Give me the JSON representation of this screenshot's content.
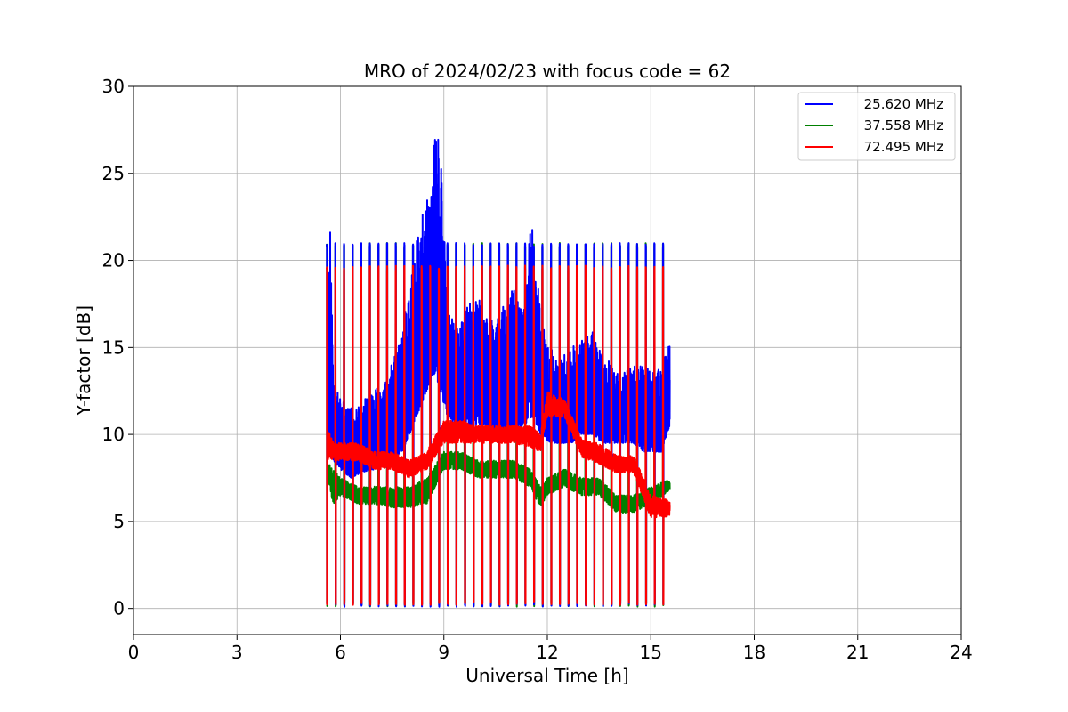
{
  "chart_data": {
    "type": "line",
    "title": "MRO of 2024/02/23 with focus code = 62",
    "xlabel": "Universal Time [h]",
    "ylabel": "Y-factor [dB]",
    "xlim": [
      0,
      24
    ],
    "ylim": [
      -1.5,
      30
    ],
    "xticks": [
      0,
      3,
      6,
      9,
      12,
      15,
      18,
      21,
      24
    ],
    "yticks": [
      0,
      5,
      10,
      15,
      20,
      25,
      30
    ],
    "grid": true,
    "legend_position": "top-right",
    "cycle_period_hours": 0.25,
    "series": [
      {
        "name": "25.620 MHz",
        "color": "#0000ff",
        "calibration_high": 21.0,
        "calibration_low": 0.1,
        "x": [
          5.6,
          5.7,
          5.8,
          6.0,
          6.3,
          6.6,
          7.0,
          7.4,
          7.8,
          8.0,
          8.2,
          8.4,
          8.6,
          8.75,
          8.9,
          9.1,
          9.4,
          9.7,
          10.0,
          10.3,
          10.6,
          11.0,
          11.3,
          11.55,
          11.8,
          12.1,
          12.4,
          12.7,
          13.0,
          13.3,
          13.6,
          13.9,
          14.2,
          14.5,
          14.8,
          15.1,
          15.3,
          15.55
        ],
        "min": [
          8.0,
          9.5,
          8.5,
          8.0,
          7.5,
          7.8,
          8.0,
          8.5,
          9.0,
          10.0,
          11.0,
          12.0,
          13.0,
          13.5,
          12.5,
          11.0,
          10.5,
          10.5,
          10.5,
          10.0,
          10.0,
          10.0,
          10.5,
          11.0,
          10.0,
          9.5,
          9.5,
          9.5,
          10.0,
          10.0,
          9.5,
          9.5,
          9.5,
          9.5,
          9.0,
          9.0,
          9.0,
          10.5
        ],
        "max": [
          17.5,
          22.4,
          13.0,
          12.0,
          11.5,
          12.0,
          12.5,
          13.5,
          16.0,
          18.5,
          21.0,
          23.0,
          24.0,
          28.6,
          26.4,
          17.5,
          16.0,
          17.5,
          18.0,
          16.5,
          17.0,
          18.5,
          17.0,
          23.0,
          17.0,
          15.0,
          14.5,
          15.0,
          15.5,
          16.0,
          14.5,
          14.0,
          13.5,
          14.0,
          14.0,
          13.5,
          14.0,
          15.2
        ]
      },
      {
        "name": "37.558 MHz",
        "color": "#008000",
        "calibration_high": 21.0,
        "calibration_low": 0.1,
        "x": [
          5.6,
          5.8,
          6.0,
          6.5,
          7.0,
          7.5,
          8.0,
          8.5,
          9.0,
          9.5,
          10.0,
          10.5,
          11.0,
          11.5,
          11.8,
          12.0,
          12.5,
          13.0,
          13.5,
          14.0,
          14.5,
          15.0,
          15.55
        ],
        "min": [
          7.5,
          6.0,
          6.5,
          6.0,
          6.0,
          5.8,
          5.8,
          6.0,
          8.0,
          8.0,
          7.5,
          7.5,
          7.5,
          7.0,
          5.8,
          6.5,
          7.0,
          6.5,
          6.5,
          5.5,
          5.5,
          6.0,
          6.8
        ],
        "max": [
          8.5,
          8.0,
          7.5,
          7.0,
          7.0,
          7.0,
          7.0,
          7.5,
          9.0,
          9.0,
          8.5,
          8.5,
          8.5,
          8.0,
          7.0,
          7.5,
          8.0,
          7.5,
          7.5,
          6.5,
          6.5,
          7.0,
          7.4
        ]
      },
      {
        "name": "72.495 MHz",
        "color": "#ff0000",
        "calibration_high": 19.7,
        "calibration_low": 0.2,
        "x": [
          5.6,
          5.8,
          6.0,
          6.5,
          7.0,
          7.5,
          8.0,
          8.5,
          9.0,
          9.5,
          10.0,
          10.5,
          11.0,
          11.5,
          11.8,
          12.0,
          12.5,
          13.0,
          13.5,
          14.0,
          14.5,
          15.0,
          15.55
        ],
        "min": [
          8.5,
          8.5,
          8.5,
          8.5,
          8.0,
          8.0,
          7.5,
          8.0,
          9.5,
          9.5,
          9.5,
          9.5,
          9.5,
          9.3,
          9.0,
          11.0,
          11.0,
          8.7,
          8.3,
          7.8,
          7.8,
          5.2,
          5.3
        ],
        "max": [
          10.5,
          9.5,
          9.5,
          9.5,
          9.0,
          9.0,
          8.5,
          9.0,
          10.8,
          10.8,
          10.5,
          10.5,
          10.5,
          10.5,
          10.0,
          12.5,
          12.0,
          9.7,
          9.5,
          8.8,
          8.8,
          6.5,
          6.2
        ]
      }
    ]
  }
}
